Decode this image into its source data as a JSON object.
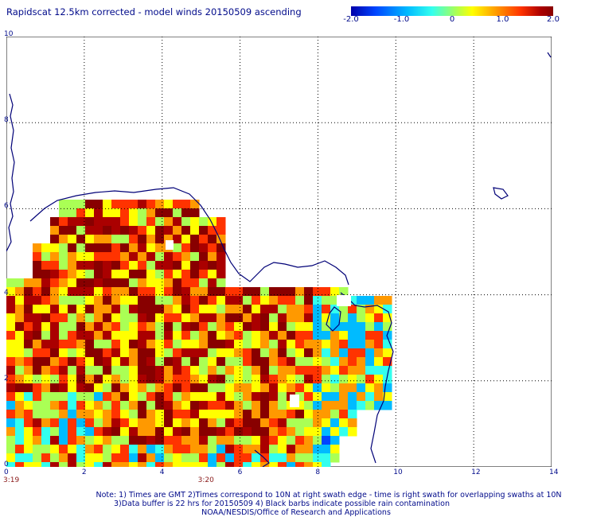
{
  "title": "Rapidscat 12.5km corrected - model winds 20150509 ascending",
  "colorbar": {
    "tick_labels": [
      "-2.0",
      "-1.0",
      "0",
      "1.0",
      "2.0"
    ],
    "tick_values": [
      -2.0,
      -1.0,
      0,
      1.0,
      2.0
    ],
    "range": [
      -2.0,
      2.0
    ],
    "colors": [
      "#0000aa",
      "#0044ff",
      "#00bbff",
      "#33ffee",
      "#aaff55",
      "#ffff00",
      "#ff9900",
      "#ff3300",
      "#aa0000",
      "#880000"
    ]
  },
  "axes": {
    "x_range": [
      0,
      14
    ],
    "y_range": [
      0,
      10
    ],
    "x_ticks": [
      "0",
      "2",
      "4",
      "6",
      "8",
      "10",
      "12",
      "14"
    ],
    "y_ticks": [
      "0",
      "2",
      "4",
      "6",
      "8",
      "10"
    ],
    "grid": "dotted"
  },
  "time_labels": [
    {
      "text": "3:19",
      "x": 0
    },
    {
      "text": "3:20",
      "x": 5
    }
  ],
  "notes": {
    "line1": "Note: 1) Times are GMT 2)Times correspond to 10N at right swath edge - time is right swath for overlapping swaths at 10N",
    "line2": "3)Data buffer is 22 hrs for 20150509 4) Black barbs indicate possible rain contamination",
    "line3": "NOAA/NESDIS/Office of Research and Applications"
  }
}
